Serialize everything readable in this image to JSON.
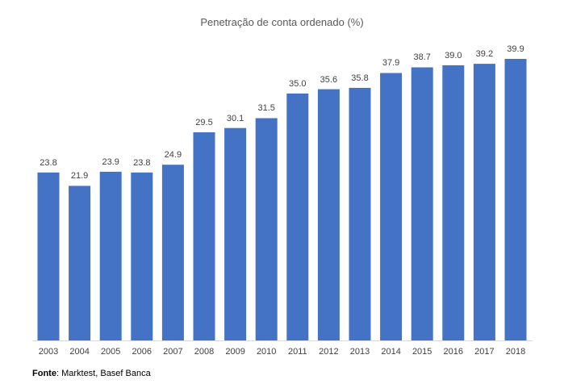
{
  "chart_data": {
    "type": "bar",
    "title": "Penetração de conta ordenado (%)",
    "categories": [
      "2003",
      "2004",
      "2005",
      "2006",
      "2007",
      "2008",
      "2009",
      "2010",
      "2011",
      "2012",
      "2013",
      "2014",
      "2015",
      "2016",
      "2017",
      "2018"
    ],
    "values": [
      23.8,
      21.9,
      23.9,
      23.8,
      24.9,
      29.5,
      30.1,
      31.5,
      35.0,
      35.6,
      35.8,
      37.9,
      38.7,
      39.0,
      39.2,
      39.9
    ],
    "value_labels": [
      "23.8",
      "21.9",
      "23.9",
      "23.8",
      "24.9",
      "29.5",
      "30.1",
      "31.5",
      "35.0",
      "35.6",
      "35.8",
      "37.9",
      "38.7",
      "39.0",
      "39.2",
      "39.9"
    ],
    "xlabel": "",
    "ylabel": "",
    "ylim": [
      0,
      40
    ],
    "grid": false,
    "bar_color": "#4472C4"
  },
  "source": {
    "label": "Fonte",
    "text": ": Marktest, Basef Banca"
  }
}
